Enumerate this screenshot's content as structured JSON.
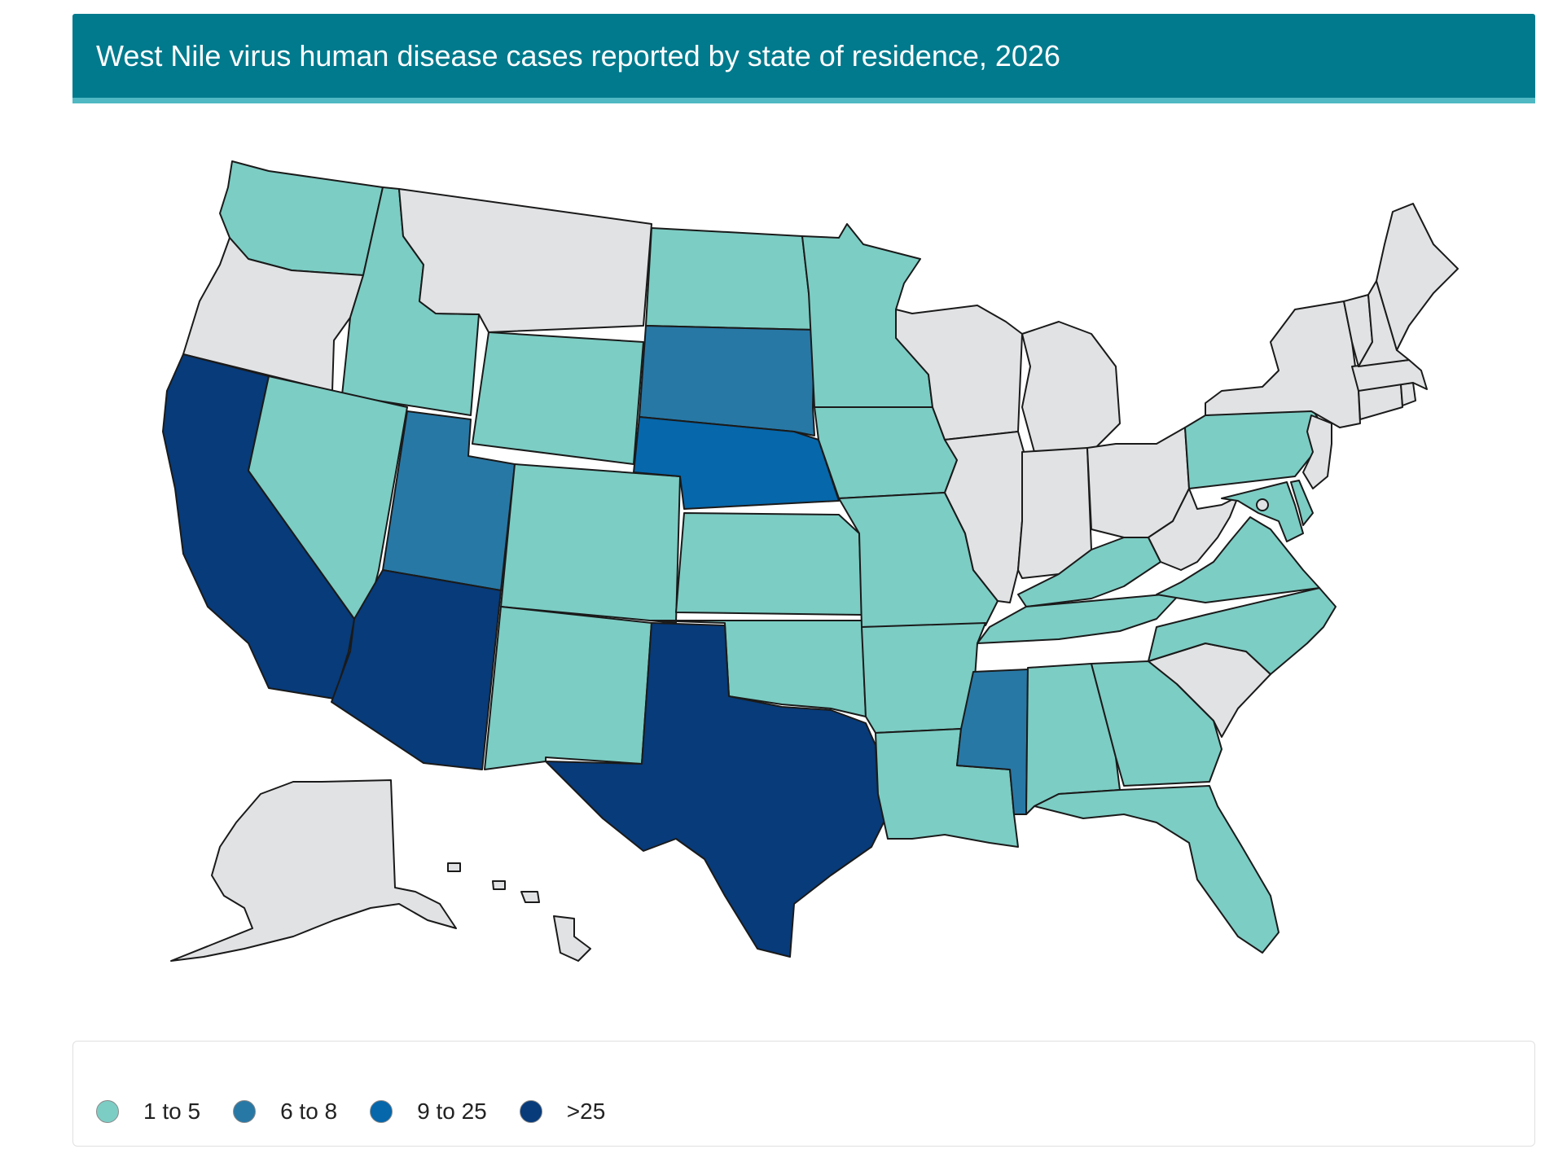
{
  "header": {
    "title": "West Nile virus human disease cases reported by state of residence, 2026"
  },
  "colors": {
    "title_bg": "#017a8d",
    "title_rule": "#4fb8c2",
    "no_cases": "#e1e2e4",
    "cases_1_5": "#7ccdc4",
    "cases_6_8": "#2878a5",
    "cases_9_25": "#0667ab",
    "cases_gt25": "#073b7a"
  },
  "legend": {
    "items": [
      {
        "label": "1 to 5",
        "color": "#7ccdc4"
      },
      {
        "label": "6 to 8",
        "color": "#2878a5"
      },
      {
        "label": "9 to 25",
        "color": "#0667ab"
      },
      {
        "label": ">25",
        "color": "#073b7a"
      }
    ]
  },
  "states": {
    "WA": "1 to 5",
    "OR": "none",
    "CA": ">25",
    "ID": "1 to 5",
    "NV": "1 to 5",
    "MT": "none",
    "WY": "1 to 5",
    "UT": "6 to 8",
    "AZ": ">25",
    "CO": "1 to 5",
    "NM": "1 to 5",
    "ND": "1 to 5",
    "SD": "6 to 8",
    "NE": "9 to 25",
    "KS": "1 to 5",
    "OK": "1 to 5",
    "TX": ">25",
    "MN": "1 to 5",
    "IA": "1 to 5",
    "MO": "1 to 5",
    "AR": "1 to 5",
    "LA": "1 to 5",
    "WI": "none",
    "IL": "none",
    "MI": "none",
    "IN": "none",
    "OH": "none",
    "KY": "1 to 5",
    "TN": "1 to 5",
    "MS": "6 to 8",
    "AL": "1 to 5",
    "GA": "1 to 5",
    "FL": "1 to 5",
    "SC": "none",
    "NC": "1 to 5",
    "VA": "1 to 5",
    "WV": "none",
    "MD": "1 to 5",
    "DE": "1 to 5",
    "NJ": "none",
    "PA": "1 to 5",
    "NY": "none",
    "CT": "none",
    "RI": "none",
    "MA": "none",
    "VT": "none",
    "NH": "none",
    "ME": "none",
    "AK": "none",
    "HI": "none",
    "DC": "none"
  }
}
